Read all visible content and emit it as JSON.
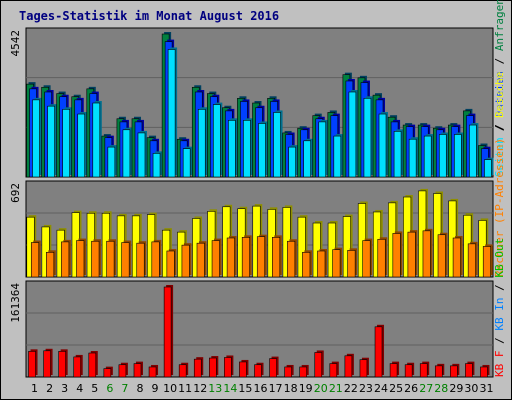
{
  "title": "Tages-Statistik im Monat August 2016",
  "colors": {
    "background": "#c0c0c0",
    "plot_bg": "#808080",
    "title": "#000080",
    "anfragen": "#008040",
    "dateien": "#0040ff",
    "seiten": "#00e0ff",
    "besuche": "#ffff00",
    "rechner": "#ff8000",
    "kb_f": "#ff0000",
    "kb_in": "#0080ff",
    "kb_out": "#00c000",
    "weekday": "#000000",
    "weekend": "#008000"
  },
  "chart_data": [
    {
      "type": "bar",
      "panel": "top",
      "y_max_label": "4542",
      "ylim": [
        0,
        4542
      ],
      "right_legend": [
        {
          "text": "Seiten",
          "color": "#00e0ff"
        },
        {
          "text": " / ",
          "color": "#000000"
        },
        {
          "text": "Dateien",
          "color": "#0040ff"
        },
        {
          "text": " / ",
          "color": "#000000"
        },
        {
          "text": "Anfragen",
          "color": "#008040"
        }
      ],
      "categories": [
        1,
        2,
        3,
        4,
        5,
        6,
        7,
        8,
        9,
        10,
        11,
        12,
        13,
        14,
        15,
        16,
        17,
        18,
        19,
        20,
        21,
        22,
        23,
        24,
        25,
        26,
        27,
        28,
        29,
        30,
        31
      ],
      "series": [
        {
          "name": "Anfragen",
          "values": [
            2950,
            2850,
            2650,
            2550,
            2800,
            1300,
            1850,
            1850,
            1250,
            4542,
            1200,
            2850,
            2650,
            2200,
            2500,
            2350,
            2500,
            1400,
            1550,
            1950,
            2050,
            3250,
            3150,
            2600,
            1900,
            1650,
            1650,
            1550,
            1650,
            2100,
            1000
          ]
        },
        {
          "name": "Dateien",
          "values": [
            2800,
            2700,
            2550,
            2450,
            2650,
            1250,
            1750,
            1750,
            1150,
            4300,
            1150,
            2700,
            2550,
            2100,
            2400,
            2200,
            2400,
            1350,
            1500,
            1850,
            1950,
            3050,
            3000,
            2450,
            1750,
            1600,
            1600,
            1500,
            1600,
            1950,
            900
          ]
        },
        {
          "name": "Seiten",
          "values": [
            2450,
            2250,
            2150,
            2000,
            2350,
            950,
            1500,
            1400,
            750,
            4050,
            900,
            2150,
            2300,
            1800,
            1800,
            1700,
            2050,
            950,
            1150,
            1750,
            1300,
            2700,
            2500,
            2000,
            1450,
            1200,
            1300,
            1350,
            1350,
            1650,
            550
          ]
        }
      ]
    },
    {
      "type": "bar",
      "panel": "middle",
      "y_max_label": "692",
      "ylim": [
        0,
        692
      ],
      "right_legend": [
        {
          "text": "Rechner (IP-Adressen)",
          "color": "#ff8000"
        },
        {
          "text": " / ",
          "color": "#000000"
        },
        {
          "text": "Besuche",
          "color": "#ffff00"
        }
      ],
      "categories": [
        1,
        2,
        3,
        4,
        5,
        6,
        7,
        8,
        9,
        10,
        11,
        12,
        13,
        14,
        15,
        16,
        17,
        18,
        19,
        20,
        21,
        22,
        23,
        24,
        25,
        26,
        27,
        28,
        29,
        30,
        31
      ],
      "series": [
        {
          "name": "Besuche",
          "values": [
            460,
            385,
            360,
            495,
            490,
            490,
            470,
            470,
            480,
            360,
            345,
            450,
            505,
            540,
            525,
            545,
            520,
            535,
            460,
            415,
            415,
            465,
            565,
            500,
            570,
            615,
            662,
            642,
            585,
            475,
            435
          ]
        },
        {
          "name": "Rechner (IP-Adressen)",
          "values": [
            265,
            190,
            270,
            280,
            275,
            275,
            265,
            260,
            270,
            200,
            245,
            260,
            280,
            300,
            305,
            310,
            305,
            275,
            190,
            200,
            210,
            205,
            280,
            290,
            335,
            345,
            355,
            325,
            300,
            255,
            235
          ]
        }
      ]
    },
    {
      "type": "bar",
      "panel": "bottom",
      "y_max_label": "161364",
      "ylim": [
        0,
        161364
      ],
      "right_legend": [
        {
          "text": "KB F",
          "color": "#ff0000"
        },
        {
          "text": " / ",
          "color": "#000000"
        },
        {
          "text": "KB In",
          "color": "#0080ff"
        },
        {
          "text": " / ",
          "color": "#000000"
        },
        {
          "text": "KB Out",
          "color": "#00c000"
        }
      ],
      "categories": [
        1,
        2,
        3,
        4,
        5,
        6,
        7,
        8,
        9,
        10,
        11,
        12,
        13,
        14,
        15,
        16,
        17,
        18,
        19,
        20,
        21,
        22,
        23,
        24,
        25,
        26,
        27,
        28,
        29,
        30,
        31
      ],
      "series": [
        {
          "name": "KB F",
          "values": [
            46000,
            47000,
            46000,
            36000,
            43000,
            15000,
            22000,
            24000,
            18000,
            161364,
            22000,
            32000,
            34000,
            35000,
            27000,
            22000,
            33000,
            18000,
            18000,
            44000,
            24000,
            38000,
            31000,
            90000,
            24000,
            22000,
            24000,
            20000,
            20000,
            24000,
            18000
          ]
        }
      ]
    }
  ],
  "x_axis": {
    "labels": [
      "1",
      "2",
      "3",
      "4",
      "5",
      "6",
      "7",
      "8",
      "9",
      "10",
      "11",
      "12",
      "13",
      "14",
      "15",
      "16",
      "17",
      "18",
      "19",
      "20",
      "21",
      "22",
      "23",
      "24",
      "25",
      "26",
      "27",
      "28",
      "29",
      "30",
      "31"
    ],
    "weekend": [
      6,
      7,
      13,
      14,
      20,
      21,
      27,
      28
    ]
  }
}
